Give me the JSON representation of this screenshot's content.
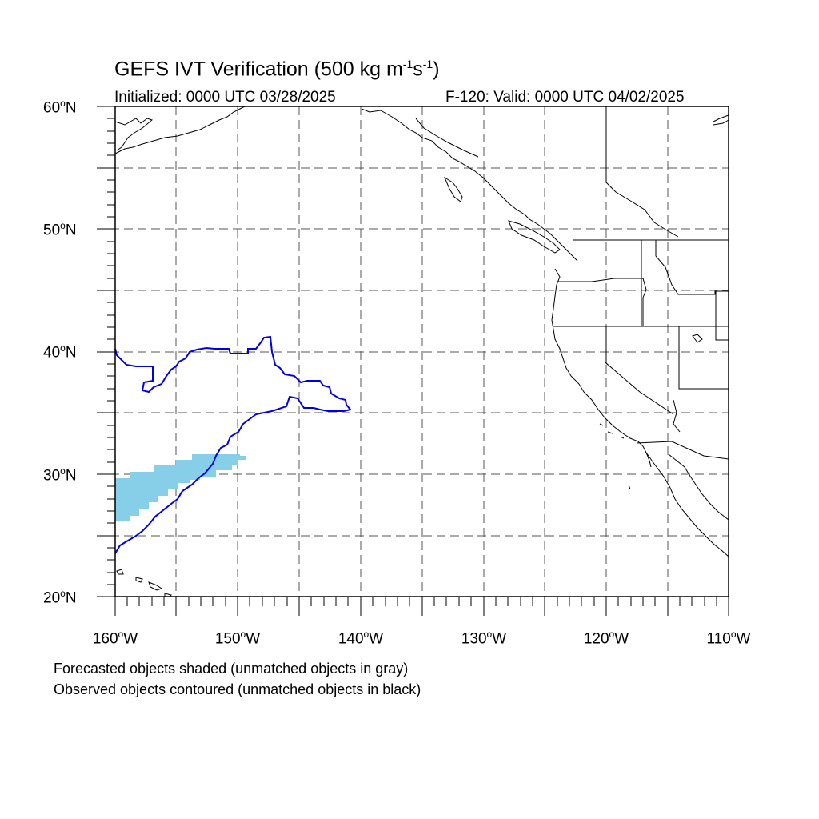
{
  "title": {
    "prefix": "GEFS IVT Verification (500 kg m",
    "exp1": "-1",
    "mid": "s",
    "exp2": "-1",
    "suffix": ")"
  },
  "initialized": "Initialized: 0000 UTC 03/28/2025",
  "valid": "F-120: Valid: 0000 UTC 04/02/2025",
  "lat_labels": [
    {
      "num": "60",
      "hem": "N"
    },
    {
      "num": "50",
      "hem": "N"
    },
    {
      "num": "40",
      "hem": "N"
    },
    {
      "num": "30",
      "hem": "N"
    },
    {
      "num": "20",
      "hem": "N"
    }
  ],
  "lon_labels": [
    {
      "num": "160",
      "hem": "W"
    },
    {
      "num": "150",
      "hem": "W"
    },
    {
      "num": "140",
      "hem": "W"
    },
    {
      "num": "130",
      "hem": "W"
    },
    {
      "num": "120",
      "hem": "W"
    },
    {
      "num": "110",
      "hem": "W"
    }
  ],
  "notes": {
    "line1": "Forecasted objects shaded (unmatched objects in gray)",
    "line2": "Observed objects contoured (unmatched objects in black)"
  },
  "colors": {
    "forecast_fill": "#87cfe8",
    "observed_contour": "#0000e6",
    "coastline": "#000000",
    "gridline": "#555555"
  }
}
